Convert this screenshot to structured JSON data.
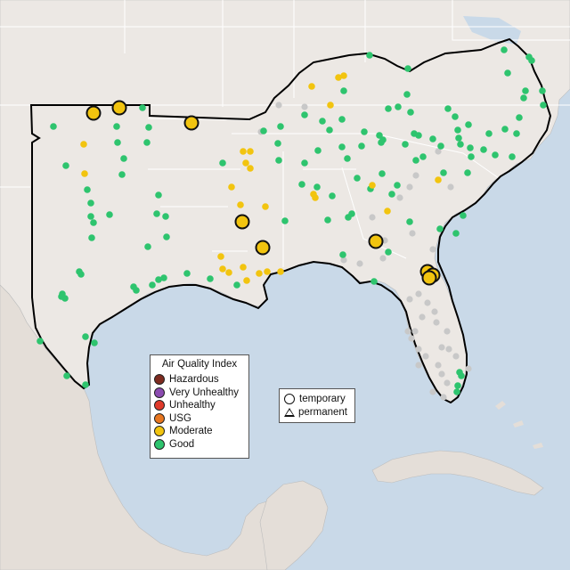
{
  "legend": {
    "title": "Air Quality Index",
    "categories": [
      {
        "label": "Hazardous",
        "color": "#7e2b1f"
      },
      {
        "label": "Very Unhealthy",
        "color": "#8b4bb0"
      },
      {
        "label": "Unhealthy",
        "color": "#e03a2a"
      },
      {
        "label": "USG",
        "color": "#e8761f"
      },
      {
        "label": "Moderate",
        "color": "#f2c40f"
      },
      {
        "label": "Good",
        "color": "#2ec46e"
      }
    ]
  },
  "monitor_type_legend": {
    "temporary": "temporary",
    "permanent": "permanent"
  },
  "colors": {
    "water": "#c9d9e8",
    "land": "#ece8e4",
    "border": "#ffffff",
    "region_outline": "#000000",
    "no_data": "#c8c8c8"
  }
}
